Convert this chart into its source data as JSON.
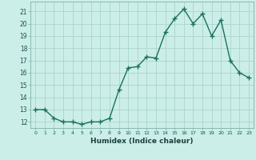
{
  "x": [
    0,
    1,
    2,
    3,
    4,
    5,
    6,
    7,
    8,
    9,
    10,
    11,
    12,
    13,
    14,
    15,
    16,
    17,
    18,
    19,
    20,
    21,
    22,
    23
  ],
  "y": [
    13.0,
    13.0,
    12.3,
    12.0,
    12.0,
    11.8,
    12.0,
    12.0,
    12.3,
    14.6,
    16.4,
    16.5,
    17.3,
    17.2,
    19.3,
    20.4,
    21.2,
    20.0,
    20.8,
    19.0,
    20.3,
    17.0,
    16.0,
    15.6
  ],
  "line_color": "#1a7060",
  "marker": "+",
  "marker_size": 4,
  "linewidth": 1.0,
  "bg_color": "#cceee8",
  "grid_color": "#aad4cc",
  "xlabel": "Humidex (Indice chaleur)",
  "yticks": [
    12,
    13,
    14,
    15,
    16,
    17,
    18,
    19,
    20,
    21
  ],
  "ylim": [
    11.5,
    21.8
  ],
  "xlim": [
    -0.5,
    23.5
  ]
}
